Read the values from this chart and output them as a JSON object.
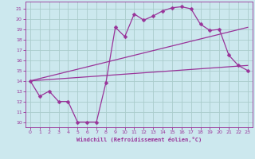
{
  "xlabel": "Windchill (Refroidissement éolien,°C)",
  "bg_color": "#cce8ee",
  "grid_color": "#aacccc",
  "line_color": "#993399",
  "xlim": [
    -0.5,
    23.5
  ],
  "ylim": [
    9.5,
    21.7
  ],
  "yticks": [
    10,
    11,
    12,
    13,
    14,
    15,
    16,
    17,
    18,
    19,
    20,
    21
  ],
  "xticks": [
    0,
    1,
    2,
    3,
    4,
    5,
    6,
    7,
    8,
    9,
    10,
    11,
    12,
    13,
    14,
    15,
    16,
    17,
    18,
    19,
    20,
    21,
    22,
    23
  ],
  "line1_x": [
    0,
    1,
    2,
    3,
    4,
    5,
    6,
    7,
    8,
    9,
    10,
    11,
    12,
    13,
    14,
    15,
    16,
    17,
    18,
    19,
    20,
    21,
    22,
    23
  ],
  "line1_y": [
    14.0,
    12.5,
    13.0,
    12.0,
    12.0,
    10.0,
    10.0,
    10.0,
    13.8,
    19.2,
    18.3,
    20.5,
    19.9,
    20.3,
    20.8,
    21.1,
    21.2,
    21.0,
    19.5,
    18.9,
    19.0,
    16.5,
    15.5,
    15.0
  ],
  "line2_x": [
    0,
    23
  ],
  "line2_y": [
    14.0,
    15.5
  ],
  "line3_x": [
    0,
    23
  ],
  "line3_y": [
    14.0,
    19.2
  ],
  "markersize": 2.5,
  "linewidth": 0.9,
  "tick_fontsize": 4.5,
  "xlabel_fontsize": 5.0
}
